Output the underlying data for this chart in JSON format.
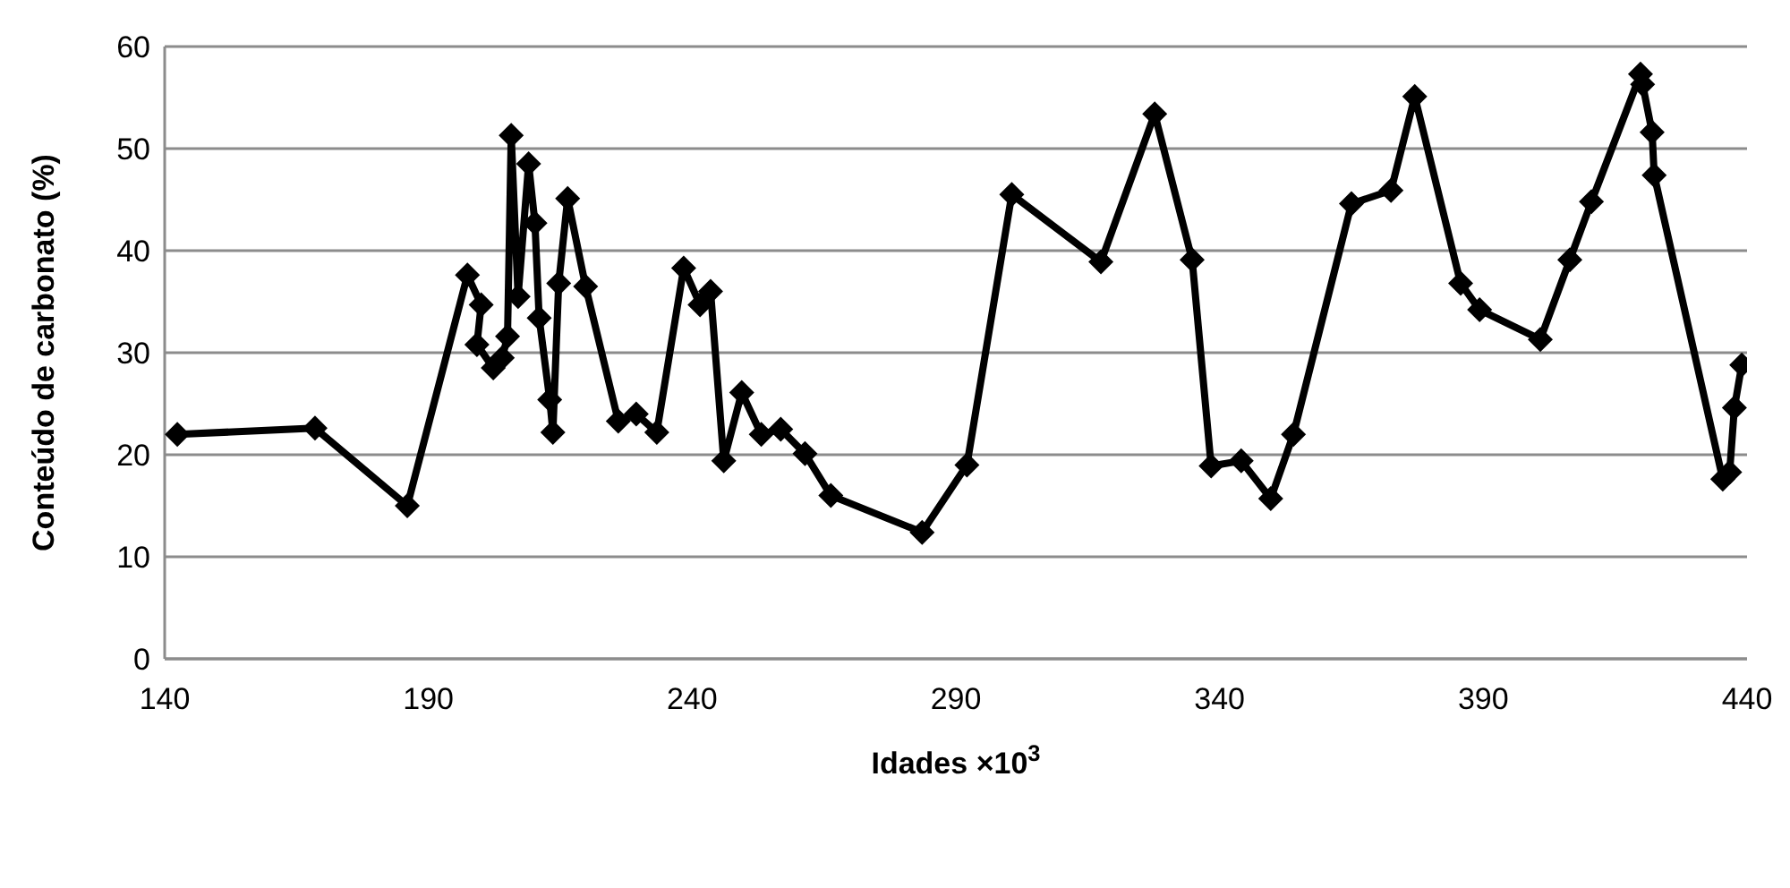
{
  "chart_data": {
    "type": "line",
    "xlabel": "Idades ×10$^{3}$",
    "ylabel": "Conteúdo de carbonato (%)",
    "x": [
      142.4,
      168.5,
      186,
      197.4,
      200,
      199.2,
      202.3,
      204,
      205,
      205.7,
      207,
      209,
      210.2,
      211,
      213,
      213.6,
      214.7,
      216.4,
      219.8,
      226,
      229.4,
      233.3,
      238.4,
      241.5,
      243.5,
      246,
      249.4,
      253.1,
      256.8,
      261.4,
      266.3,
      283.6,
      292.1,
      300.6,
      317.5,
      327.7,
      334.8,
      338.4,
      344.1,
      349.7,
      354,
      365,
      372.5,
      377,
      385.7,
      389.3,
      400.8,
      406.4,
      410.5,
      419.8,
      420.2,
      422,
      422.4,
      435.4,
      436.7,
      437.6,
      439
    ],
    "series": [
      {
        "color": "#000000",
        "values": [
          22,
          22.6,
          15,
          37.6,
          34.7,
          30.8,
          28.5,
          29.5,
          31.6,
          51.3,
          35.5,
          48.5,
          42.7,
          33.4,
          25.4,
          22.2,
          36.8,
          45.1,
          36.5,
          23.3,
          24,
          22.2,
          38.3,
          34.7,
          36,
          19.4,
          26.1,
          22,
          22.5,
          20.1,
          16,
          12.4,
          19,
          45.5,
          38.9,
          53.4,
          39.1,
          18.9,
          19.4,
          15.7,
          22,
          44.6,
          45.9,
          55.1,
          36.8,
          34.2,
          31.3,
          39.1,
          44.8,
          57.3,
          56.3,
          51.6,
          47.4,
          17.6,
          18.3,
          24.6,
          28.8
        ]
      }
    ],
    "xlim": [
      140,
      440
    ],
    "xticks": [
      140,
      190,
      240,
      290,
      340,
      390,
      440
    ],
    "ylim": [
      0,
      60
    ],
    "yticks": [
      0,
      10,
      20,
      30,
      40,
      50,
      60
    ],
    "grid": "y",
    "legend": false,
    "marker": "diamond",
    "line_style": "solid"
  }
}
